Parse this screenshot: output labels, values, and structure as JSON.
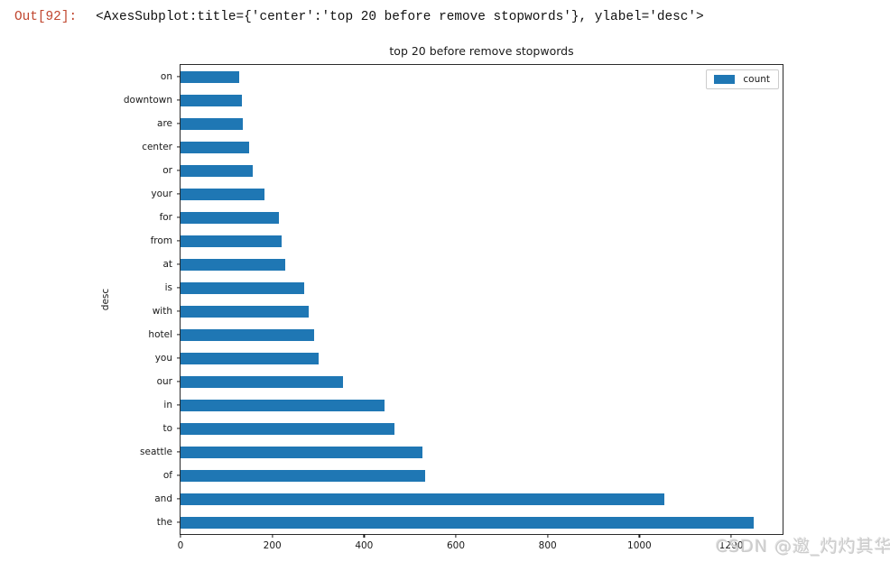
{
  "console": {
    "out_prompt": "Out[92]:",
    "repr_text": "<AxesSubplot:title={'center':'top 20 before remove stopwords'}, ylabel='desc'>"
  },
  "chart_data": {
    "type": "bar",
    "orientation": "horizontal",
    "title": "top 20 before remove stopwords",
    "xlabel": "",
    "ylabel": "desc",
    "legend": {
      "label": "count",
      "position": "upper right"
    },
    "grid": false,
    "bar_color": "#1f77b4",
    "categories_top_to_bottom": [
      "on",
      "downtown",
      "are",
      "center",
      "or",
      "your",
      "for",
      "from",
      "at",
      "is",
      "with",
      "hotel",
      "you",
      "our",
      "in",
      "to",
      "seattle",
      "of",
      "and",
      "the"
    ],
    "values": [
      128,
      133,
      136,
      150,
      157,
      182,
      214,
      220,
      229,
      269,
      279,
      292,
      301,
      355,
      445,
      466,
      527,
      533,
      1055,
      1250
    ],
    "xlim": [
      0,
      1312
    ],
    "xticks": [
      0,
      200,
      400,
      600,
      800,
      1000,
      1200
    ]
  },
  "watermark": {
    "text": "CSDN @邀_灼灼其华",
    "color": "#cccccc"
  },
  "colors": {
    "accent": "#1f77b4",
    "out_prompt": "#c0462f",
    "axis": "#1a1a1a"
  }
}
